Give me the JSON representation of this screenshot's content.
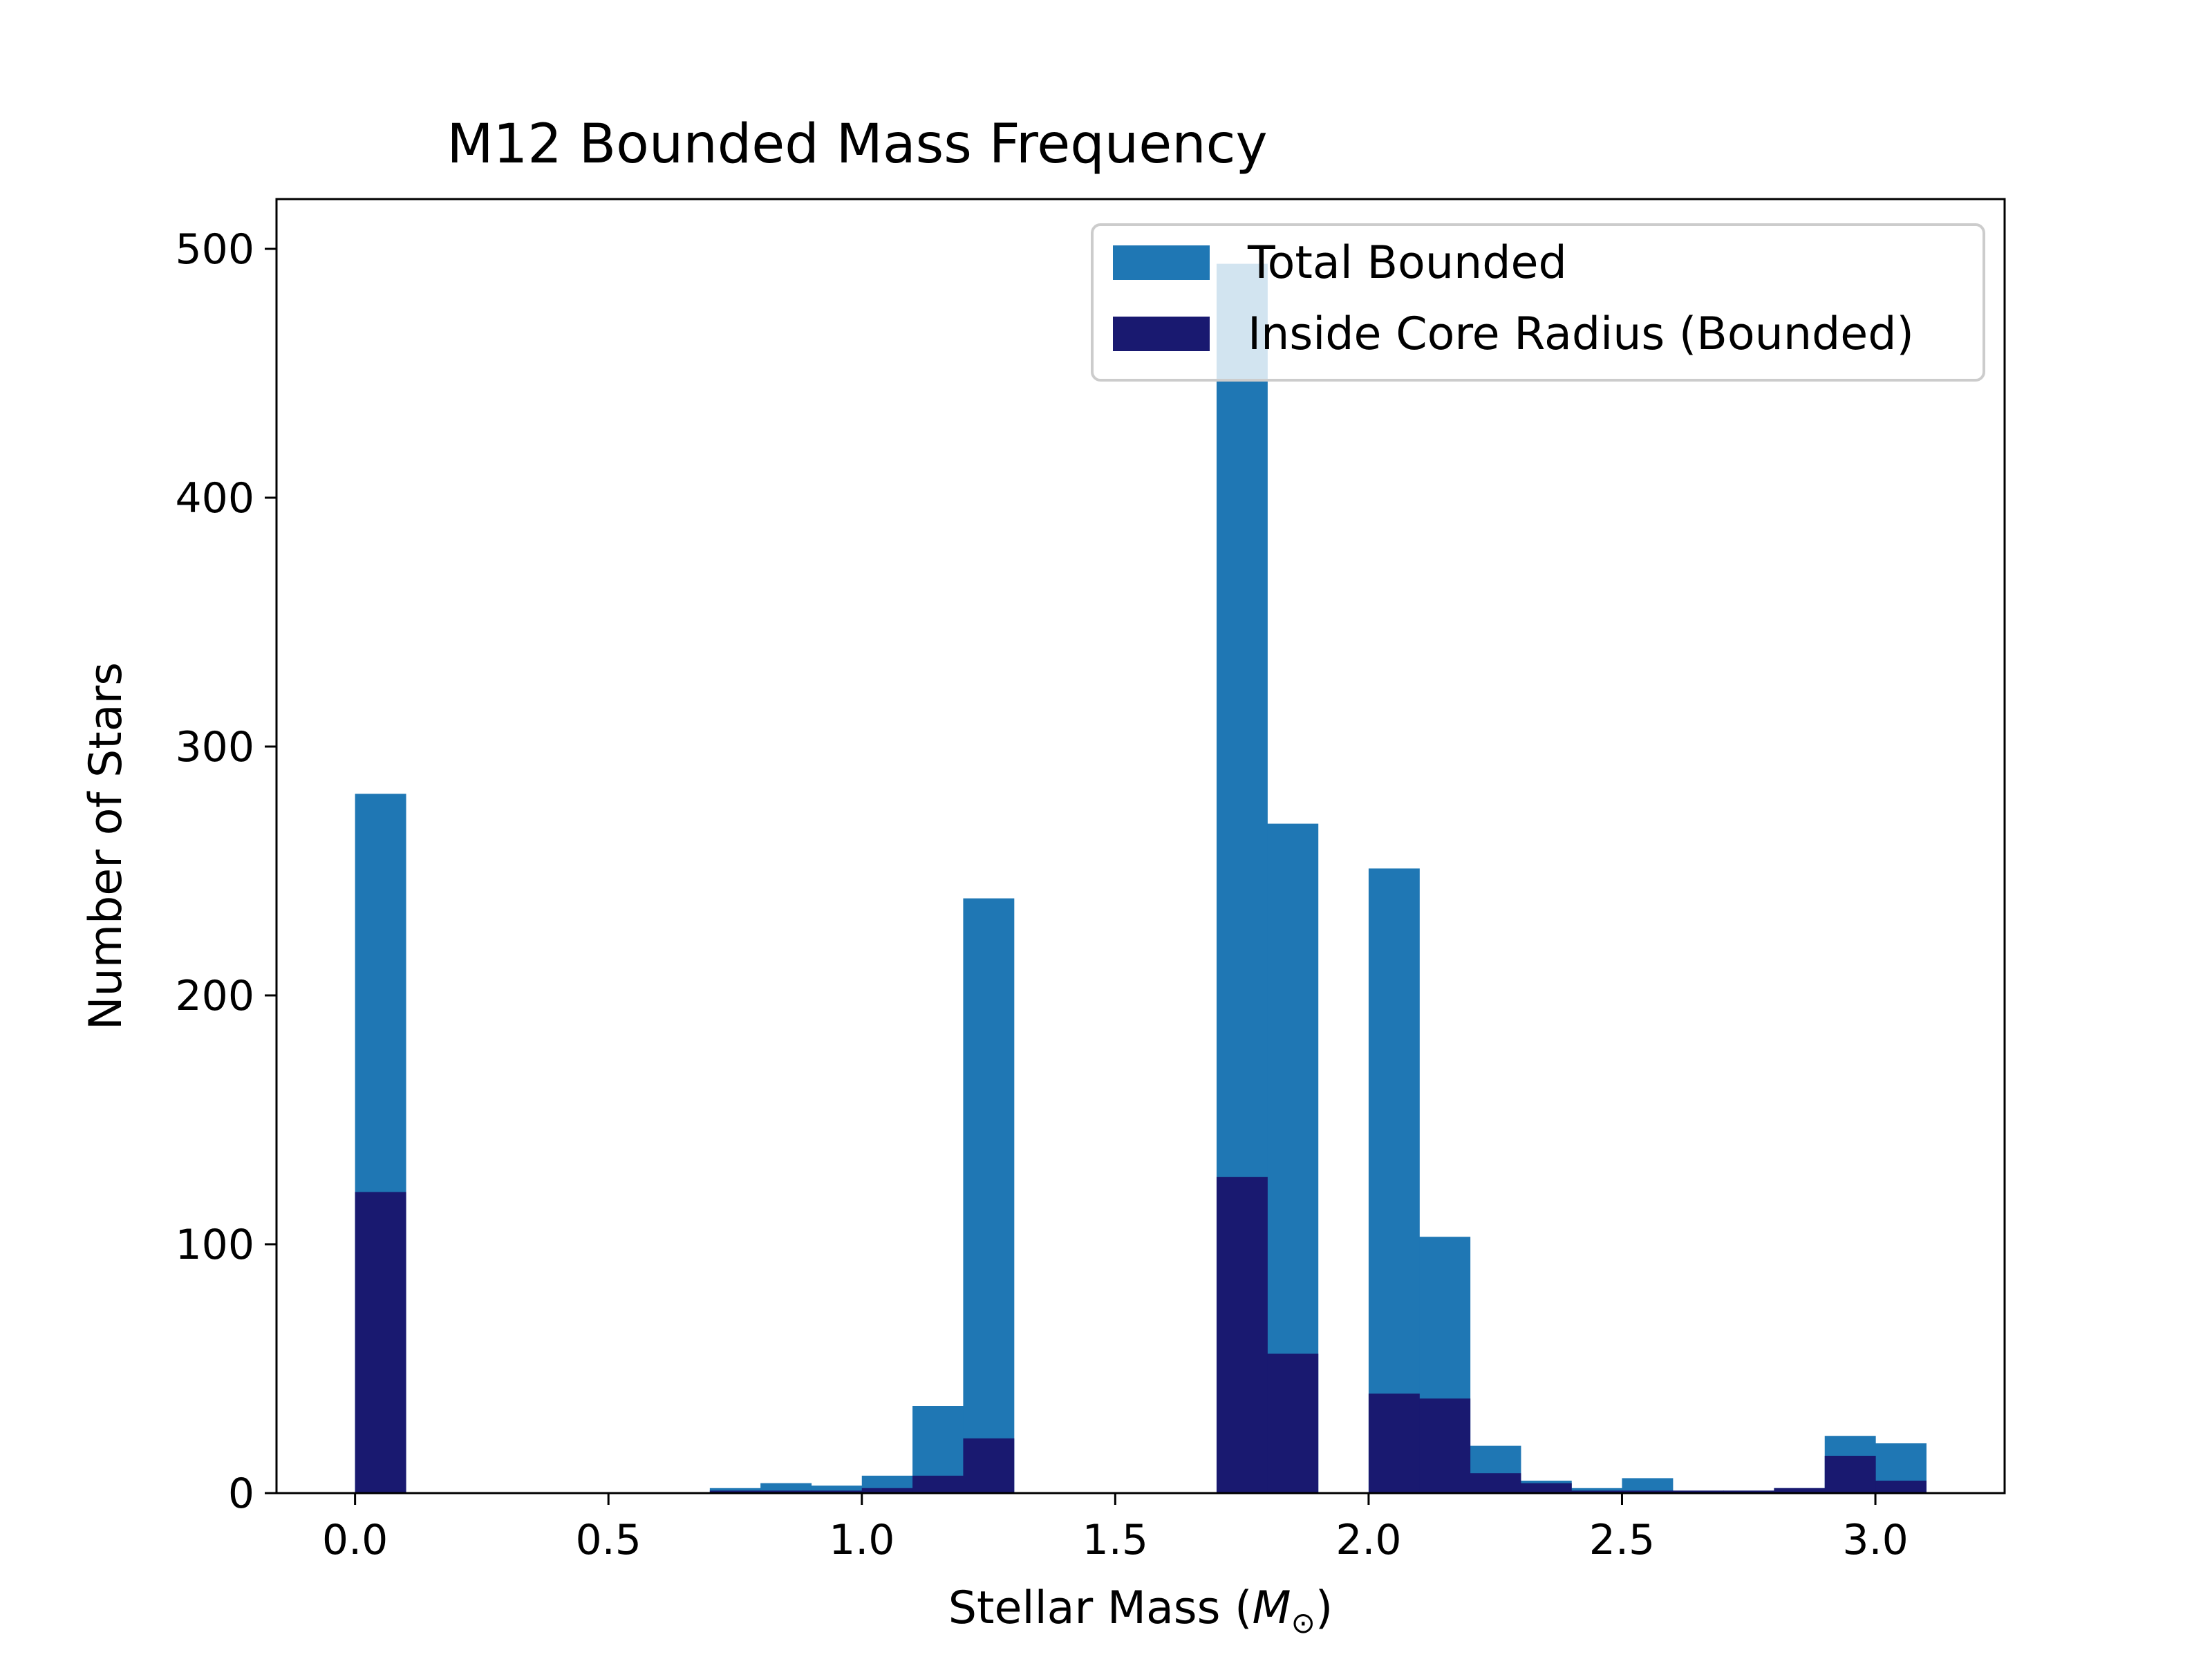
{
  "chart_data": {
    "type": "bar",
    "title": "M12 Bounded Mass Frequency",
    "xlabel_main": "Stellar Mass (",
    "xlabel_symbol": "M",
    "xlabel_sub": "⊙",
    "xlabel_close": ")",
    "ylabel": "Number of Stars",
    "xlim": [
      -0.155,
      3.255
    ],
    "ylim": [
      0,
      520
    ],
    "xticks": [
      0.0,
      0.5,
      1.0,
      1.5,
      2.0,
      2.5,
      3.0
    ],
    "xtick_labels": [
      "0.0",
      "0.5",
      "1.0",
      "1.5",
      "2.0",
      "2.5",
      "3.0"
    ],
    "yticks": [
      0,
      100,
      200,
      300,
      400,
      500
    ],
    "ytick_labels": [
      "0",
      "100",
      "200",
      "300",
      "400",
      "500"
    ],
    "bin_width": 0.1,
    "bin_starts": [
      0.0,
      0.1,
      0.2,
      0.3,
      0.4,
      0.5,
      0.6,
      0.7,
      0.8,
      0.9,
      1.0,
      1.1,
      1.2,
      1.3,
      1.4,
      1.5,
      1.6,
      1.7,
      1.8,
      1.9,
      2.0,
      2.1,
      2.2,
      2.3,
      2.4,
      2.5,
      2.6,
      2.7,
      2.8,
      2.9,
      3.0
    ],
    "series": [
      {
        "name": "Total Bounded",
        "color": "#1f77b4",
        "values": [
          281,
          0,
          0,
          0,
          0,
          0,
          0,
          2,
          4,
          3,
          7,
          35,
          239,
          0,
          0,
          0,
          0,
          494,
          269,
          0,
          251,
          103,
          19,
          5,
          2,
          6,
          1,
          1,
          2,
          23,
          20
        ]
      },
      {
        "name": "Inside Core Radius (Bounded)",
        "color": "#191970",
        "values": [
          121,
          0,
          0,
          0,
          0,
          0,
          0,
          1,
          1,
          1,
          2,
          7,
          22,
          0,
          0,
          0,
          0,
          127,
          56,
          0,
          40,
          38,
          8,
          4,
          1,
          1,
          1,
          1,
          2,
          15,
          5
        ]
      }
    ],
    "grid": false,
    "legend_position": "top-right"
  }
}
